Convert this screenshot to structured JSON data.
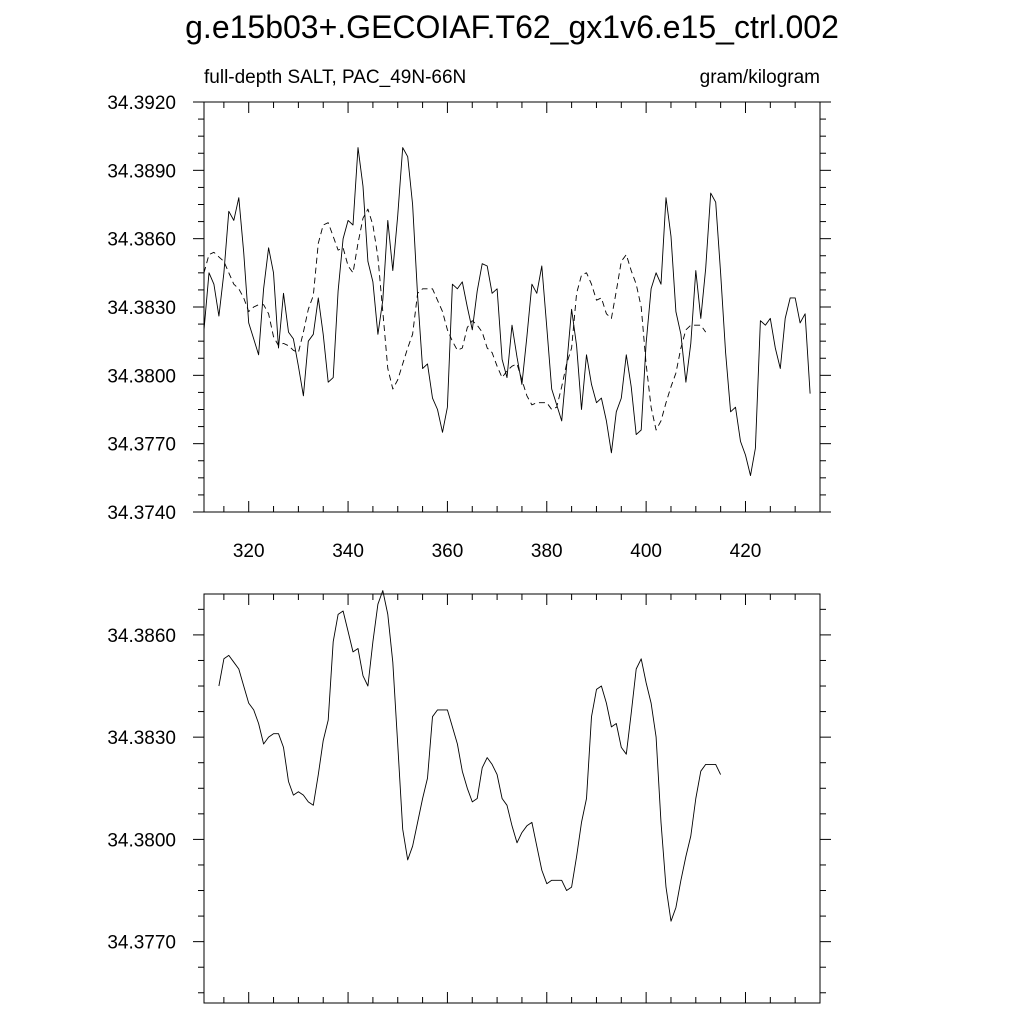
{
  "page": {
    "title": "g.e15b03+.GECOIAF.T62_gx1v6.e15_ctrl.002",
    "left_label": "full-depth SALT, PAC_49N-66N",
    "right_label": "gram/kilogram"
  },
  "chart_data": [
    {
      "type": "line",
      "name": "raw-and-smoothed",
      "xlim": [
        311,
        435
      ],
      "ylim": [
        34.374,
        34.392
      ],
      "x_ticks": [
        320,
        340,
        360,
        380,
        400,
        420
      ],
      "y_ticks": [
        34.374,
        34.377,
        34.38,
        34.383,
        34.386,
        34.389,
        34.392
      ],
      "y_tick_labels": [
        "34.3740",
        "34.3770",
        "34.3800",
        "34.3830",
        "34.3860",
        "34.3890",
        "34.3920"
      ],
      "x_start": 311,
      "series": [
        {
          "name": "raw",
          "style": "solid",
          "values": [
            34.382,
            34.3845,
            34.384,
            34.3826,
            34.3845,
            34.3872,
            34.3868,
            34.3878,
            34.3854,
            34.3823,
            34.3816,
            34.3809,
            34.3838,
            34.3856,
            34.3845,
            34.3812,
            34.3836,
            34.3819,
            34.3816,
            34.3804,
            34.3791,
            34.3815,
            34.3818,
            34.3834,
            34.3818,
            34.3797,
            34.3799,
            34.3837,
            34.386,
            34.3868,
            34.3866,
            34.39,
            34.3883,
            34.385,
            34.3841,
            34.3818,
            34.3833,
            34.3868,
            34.3846,
            34.387,
            34.39,
            34.3896,
            34.3875,
            34.3835,
            34.3803,
            34.3805,
            34.379,
            34.3785,
            34.3775,
            34.3786,
            34.384,
            34.3838,
            34.3841,
            34.383,
            34.382,
            34.3837,
            34.3849,
            34.3848,
            34.3836,
            34.3838,
            34.3807,
            34.3799,
            34.3822,
            34.3808,
            34.3796,
            34.3817,
            34.384,
            34.3836,
            34.3848,
            34.3821,
            34.3794,
            34.3787,
            34.378,
            34.3804,
            34.3829,
            34.3813,
            34.3785,
            34.3809,
            34.3796,
            34.3788,
            34.379,
            34.378,
            34.3766,
            34.3784,
            34.379,
            34.3809,
            34.3795,
            34.3774,
            34.3776,
            34.3814,
            34.3838,
            34.3845,
            34.384,
            34.3878,
            34.3861,
            34.3828,
            34.3818,
            34.3797,
            34.3814,
            34.3846,
            34.3825,
            34.3847,
            34.388,
            34.3876,
            34.3845,
            34.381,
            34.3784,
            34.3786,
            34.3771,
            34.3765,
            34.3756,
            34.3768,
            34.3824,
            34.3822,
            34.3825,
            34.3812,
            34.3803,
            34.3825,
            34.3834,
            34.3834,
            34.3823,
            34.3827,
            34.3792
          ]
        },
        {
          "name": "smoothed",
          "style": "dashed",
          "values": [
            34.3845,
            34.3853,
            34.3854,
            34.3852,
            34.385,
            34.3845,
            34.384,
            34.3838,
            34.3834,
            34.3828,
            34.383,
            34.3831,
            34.3831,
            34.3827,
            34.3817,
            34.3813,
            34.3814,
            34.3813,
            34.3811,
            34.381,
            34.3819,
            34.3829,
            34.3835,
            34.3858,
            34.3866,
            34.3867,
            34.3861,
            34.3855,
            34.3856,
            34.3848,
            34.3845,
            34.3858,
            34.3869,
            34.3873,
            34.3866,
            34.3852,
            34.3828,
            34.3803,
            34.3794,
            34.3798,
            34.3805,
            34.3812,
            34.3818,
            34.3836,
            34.3838,
            34.3838,
            34.3838,
            34.3833,
            34.3828,
            34.382,
            34.3815,
            34.3811,
            34.3812,
            34.3821,
            34.3824,
            34.3822,
            34.3819,
            34.3812,
            34.381,
            34.3804,
            34.3799,
            34.3802,
            34.3804,
            34.3805,
            34.3798,
            34.3791,
            34.3787,
            34.3788,
            34.3788,
            34.3788,
            34.3785,
            34.3786,
            34.3795,
            34.3805,
            34.3812,
            34.3836,
            34.3844,
            34.3845,
            34.384,
            34.3833,
            34.3834,
            34.3827,
            34.3825,
            34.3837,
            34.385,
            34.3853,
            34.3846,
            34.384,
            34.383,
            34.3805,
            34.3786,
            34.3776,
            34.378,
            34.3788,
            34.3795,
            34.3801,
            34.3812,
            34.382,
            34.3822,
            34.3822,
            34.3822,
            34.3819
          ]
        }
      ]
    },
    {
      "type": "line",
      "name": "smoothed-only",
      "xlim": [
        311,
        435
      ],
      "ylim": [
        34.3752,
        34.3872
      ],
      "x_ticks": [
        320,
        340,
        360,
        380,
        400,
        420
      ],
      "y_ticks": [
        34.377,
        34.38,
        34.383,
        34.386
      ],
      "y_tick_labels": [
        "34.3770",
        "34.3800",
        "34.3830",
        "34.3860"
      ],
      "x_start": 314,
      "series": [
        {
          "name": "smoothed",
          "style": "solid",
          "values": [
            34.3845,
            34.3853,
            34.3854,
            34.3852,
            34.385,
            34.3845,
            34.384,
            34.3838,
            34.3834,
            34.3828,
            34.383,
            34.3831,
            34.3831,
            34.3827,
            34.3817,
            34.3813,
            34.3814,
            34.3813,
            34.3811,
            34.381,
            34.3819,
            34.3829,
            34.3835,
            34.3858,
            34.3866,
            34.3867,
            34.3861,
            34.3855,
            34.3856,
            34.3848,
            34.3845,
            34.3858,
            34.3869,
            34.3873,
            34.3866,
            34.3852,
            34.3828,
            34.3803,
            34.3794,
            34.3798,
            34.3805,
            34.3812,
            34.3818,
            34.3836,
            34.3838,
            34.3838,
            34.3838,
            34.3833,
            34.3828,
            34.382,
            34.3815,
            34.3811,
            34.3812,
            34.3821,
            34.3824,
            34.3822,
            34.3819,
            34.3812,
            34.381,
            34.3804,
            34.3799,
            34.3802,
            34.3804,
            34.3805,
            34.3798,
            34.3791,
            34.3787,
            34.3788,
            34.3788,
            34.3788,
            34.3785,
            34.3786,
            34.3795,
            34.3805,
            34.3812,
            34.3836,
            34.3844,
            34.3845,
            34.384,
            34.3833,
            34.3834,
            34.3827,
            34.3825,
            34.3837,
            34.385,
            34.3853,
            34.3846,
            34.384,
            34.383,
            34.3805,
            34.3786,
            34.3776,
            34.378,
            34.3788,
            34.3795,
            34.3801,
            34.3812,
            34.382,
            34.3822,
            34.3822,
            34.3822,
            34.3819
          ]
        }
      ]
    }
  ]
}
